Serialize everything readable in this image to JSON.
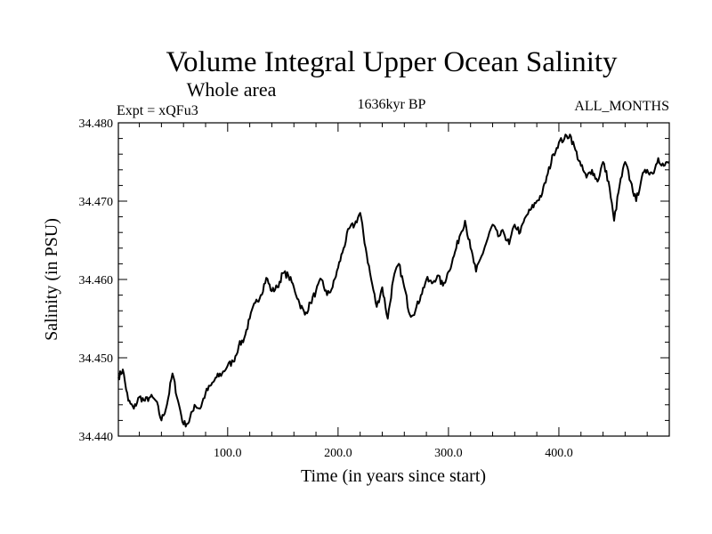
{
  "chart_data": {
    "type": "line",
    "title": "Volume Integral Upper Ocean Salinity",
    "subtitle": "Whole area",
    "header_left": "Expt = xQFu3",
    "header_center": "1636kyr BP",
    "header_right": "ALL_MONTHS",
    "xlabel": "Time (in years since start)",
    "ylabel": "Salinity (in PSU)",
    "xlim": [
      1,
      500
    ],
    "ylim": [
      34.44,
      34.48
    ],
    "x_ticks": [
      100,
      200,
      300,
      400
    ],
    "x_tick_labels": [
      "100.0",
      "200.0",
      "300.0",
      "400.0"
    ],
    "y_ticks": [
      34.44,
      34.45,
      34.46,
      34.47,
      34.48
    ],
    "y_tick_labels": [
      "34.440",
      "34.450",
      "34.460",
      "34.470",
      "34.480"
    ],
    "grid": false,
    "series": [
      {
        "name": "Salinity",
        "color": "#000000",
        "x": [
          1,
          5,
          10,
          15,
          20,
          25,
          30,
          35,
          40,
          45,
          50,
          55,
          60,
          65,
          70,
          75,
          80,
          85,
          90,
          95,
          100,
          105,
          110,
          115,
          120,
          125,
          130,
          135,
          140,
          145,
          150,
          155,
          160,
          165,
          170,
          175,
          180,
          185,
          190,
          195,
          200,
          205,
          210,
          215,
          220,
          225,
          230,
          235,
          240,
          245,
          250,
          255,
          260,
          265,
          270,
          275,
          280,
          285,
          290,
          295,
          300,
          305,
          310,
          315,
          320,
          325,
          330,
          335,
          340,
          345,
          350,
          355,
          360,
          365,
          370,
          375,
          380,
          385,
          390,
          395,
          400,
          405,
          410,
          415,
          420,
          425,
          430,
          435,
          440,
          445,
          450,
          455,
          460,
          465,
          470,
          475,
          480,
          485,
          490,
          495,
          500
        ],
        "values": [
          34.4475,
          34.4485,
          34.4445,
          34.4435,
          34.445,
          34.4445,
          34.445,
          34.4445,
          34.442,
          34.444,
          34.448,
          34.4445,
          34.4415,
          34.4418,
          34.444,
          34.4435,
          34.4455,
          34.4465,
          34.4475,
          34.448,
          34.449,
          34.4495,
          34.4515,
          34.4525,
          34.455,
          34.457,
          34.458,
          34.4602,
          34.4585,
          34.459,
          34.4608,
          34.4605,
          34.459,
          34.457,
          34.4555,
          34.457,
          34.4585,
          34.46,
          34.458,
          34.459,
          34.4615,
          34.464,
          34.4665,
          34.467,
          34.4685,
          34.464,
          34.46,
          34.4565,
          34.459,
          34.455,
          34.46,
          34.462,
          34.459,
          34.4555,
          34.456,
          34.458,
          34.46,
          34.4595,
          34.4605,
          34.4592,
          34.461,
          34.463,
          34.4655,
          34.4675,
          34.464,
          34.461,
          34.463,
          34.465,
          34.467,
          34.4655,
          34.466,
          34.4645,
          34.467,
          34.466,
          34.468,
          34.469,
          34.47,
          34.471,
          34.4735,
          34.476,
          34.4775,
          34.478,
          34.4785,
          34.4765,
          34.4745,
          34.473,
          34.474,
          34.4725,
          34.475,
          34.4725,
          34.4675,
          34.472,
          34.475,
          34.4725,
          34.47,
          34.473,
          34.474,
          34.4735,
          34.4755,
          34.4745,
          34.475
        ]
      }
    ]
  }
}
